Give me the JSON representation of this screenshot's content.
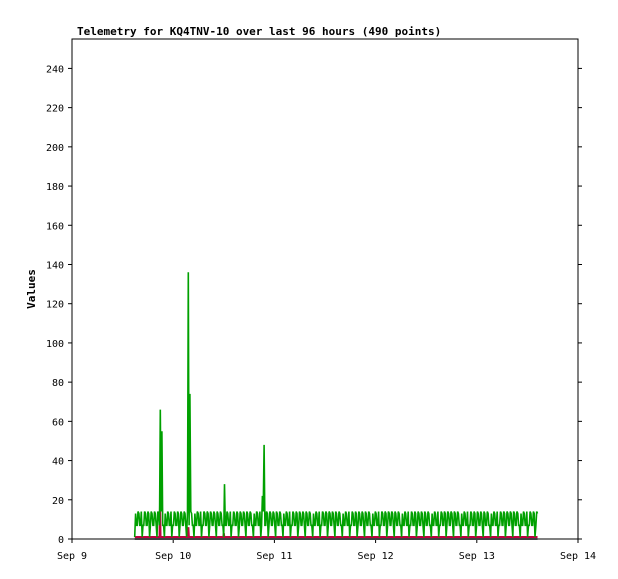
{
  "chart_data": {
    "type": "line",
    "title": "Telemetry for KQ4TNV-10 over last 96 hours (490 points)",
    "xlabel": "",
    "ylabel": "Values",
    "xlim": [
      "2023-09-09",
      "2023-09-14"
    ],
    "x_tick_labels": [
      "Sep 9",
      "Sep 10",
      "Sep 11",
      "Sep 12",
      "Sep 13",
      "Sep 14"
    ],
    "ylim": [
      0,
      255
    ],
    "y_ticks": [
      0,
      20,
      40,
      60,
      80,
      100,
      120,
      140,
      160,
      180,
      200,
      220,
      240
    ],
    "grid": false,
    "legend": "none",
    "data_span_days": [
      0.62,
      4.6
    ],
    "series": [
      {
        "color": "#00a000",
        "pattern_low": 7,
        "pattern_high": 14,
        "peaks": [
          {
            "x": 0.87,
            "y": 66
          },
          {
            "x": 0.885,
            "y": 55
          },
          {
            "x": 1.15,
            "y": 136
          },
          {
            "x": 1.165,
            "y": 74
          },
          {
            "x": 1.51,
            "y": 28
          },
          {
            "x": 1.885,
            "y": 22
          },
          {
            "x": 1.9,
            "y": 48
          }
        ]
      },
      {
        "color": "#c00040",
        "values_level": 1,
        "peaks": [
          {
            "x": 0.87,
            "y": 18
          },
          {
            "x": 1.15,
            "y": 6
          },
          {
            "x": 1.5,
            "y": 3
          }
        ]
      },
      {
        "color": "#404040",
        "values_level": 0
      }
    ]
  }
}
